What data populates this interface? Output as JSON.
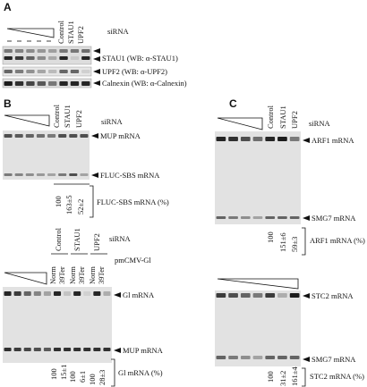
{
  "panel_a": {
    "label": "A",
    "sirna": "siRNA",
    "lanes": [
      "Control",
      "STAU1",
      "UPF2"
    ],
    "blots": [
      "STAU1 (WB: α-STAU1)",
      "UPF2 (WB: α-UPF2)",
      "Calnexin (WB: α-Calnexin)"
    ]
  },
  "panel_b": {
    "label": "B",
    "top": {
      "sirna": "siRNA",
      "lanes": [
        "Control",
        "STAU1",
        "UPF2"
      ],
      "bands": [
        "MUP mRNA",
        "FLUC-SBS mRNA"
      ],
      "quant": [
        "100",
        "163±5",
        "52±2"
      ],
      "quant_label": "FLUC-SBS mRNA (%)"
    },
    "bottom": {
      "sirna": "siRNA",
      "plasmid": "pmCMV-Gl",
      "groups": [
        "Control",
        "STAU1",
        "UPF2"
      ],
      "lanes": [
        "Norm",
        "39Ter",
        "Norm",
        "39Ter",
        "Norm",
        "39Ter"
      ],
      "bands": [
        "Gl mRNA",
        "MUP mRNA"
      ],
      "quant": [
        "100",
        "15±1",
        "100",
        "6±1",
        "100",
        "28±3"
      ],
      "quant_label": "Gl mRNA (%)"
    }
  },
  "panel_c": {
    "label": "C",
    "top": {
      "sirna": "siRNA",
      "lanes": [
        "Control",
        "STAU1",
        "UPF2"
      ],
      "bands": [
        "ARF1 mRNA",
        "SMG7 mRNA"
      ],
      "quant": [
        "100",
        "151±6",
        "59±3"
      ],
      "quant_label": "ARF1 mRNA (%)"
    },
    "bottom": {
      "bands": [
        "STC2 mRNA",
        "SMG7 mRNA"
      ],
      "quant": [
        "100",
        "31±2",
        "161±4"
      ],
      "quant_label": "STC2 mRNA (%)"
    }
  }
}
